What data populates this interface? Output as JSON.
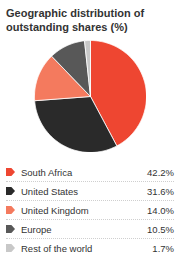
{
  "chart_data": {
    "type": "pie",
    "title": "Geographic distribution of outstanding shares (%)",
    "categories": [
      "South Africa",
      "United States",
      "United Kingdom",
      "Europe",
      "Rest of the world"
    ],
    "values": [
      42.2,
      31.6,
      14.0,
      10.5,
      1.7
    ],
    "value_labels": [
      "42.2%",
      "31.6%",
      "14.0%",
      "10.5%",
      "1.7%"
    ],
    "colors": [
      "#ee4631",
      "#2a2a2a",
      "#f47a5e",
      "#585858",
      "#c8c8c8"
    ],
    "legend": "bottom"
  }
}
